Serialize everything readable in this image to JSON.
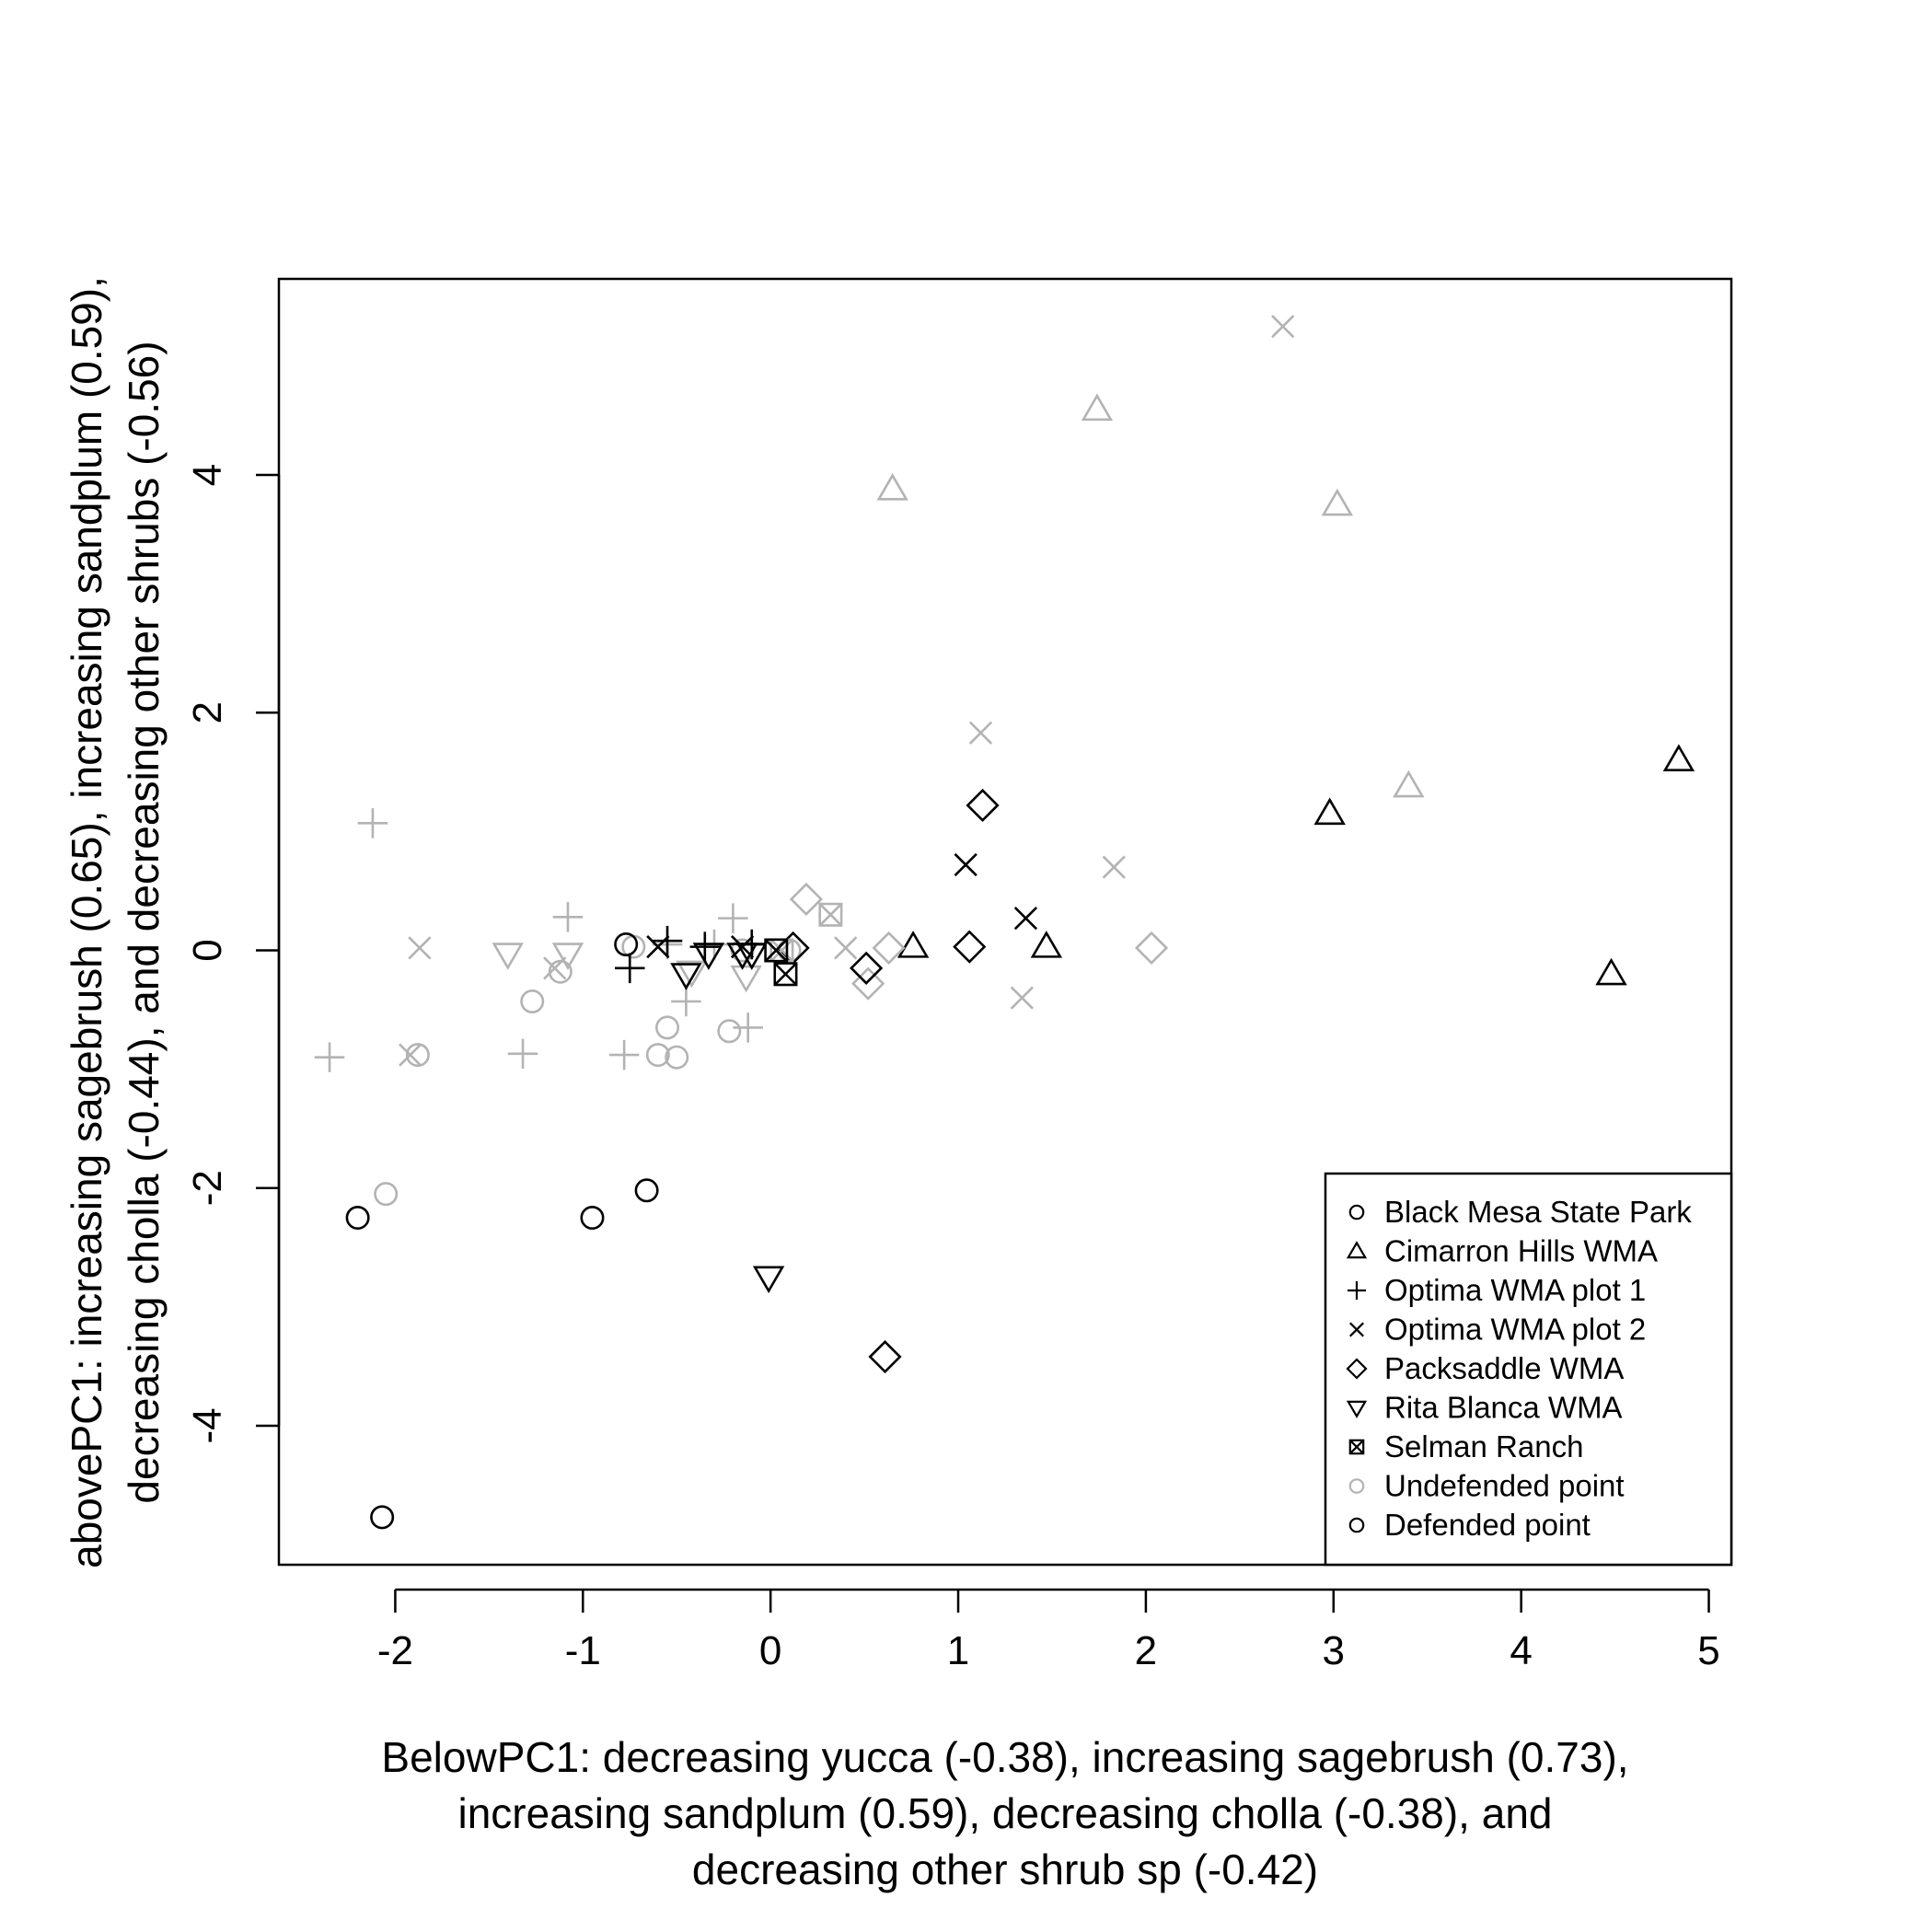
{
  "chart_data": {
    "type": "scatter",
    "title": "",
    "xlabel_lines": [
      "BelowPC1: decreasing yucca (-0.38), increasing sagebrush (0.73),",
      "increasing sandplum (0.59), decreasing cholla (-0.38), and",
      "decreasing other shrub sp (-0.42)"
    ],
    "ylabel_lines": [
      "abovePC1: increasing sagebrush (0.65), increasing sandplum (0.59),",
      "decreasing cholla (-0.44), and decreasing other shrubs (-0.56)"
    ],
    "xlim": [
      -2.62,
      5.12
    ],
    "ylim": [
      -5.17,
      5.65
    ],
    "x_ticks": [
      -2,
      -1,
      0,
      1,
      2,
      3,
      4,
      5
    ],
    "y_ticks": [
      -4,
      -2,
      0,
      2,
      4
    ],
    "x_tick_labels": [
      "-2",
      "-1",
      "0",
      "1",
      "2",
      "3",
      "4",
      "5"
    ],
    "y_tick_labels": [
      "-4",
      "-2",
      "0",
      "2",
      "4"
    ],
    "grid": false,
    "legend_position": "bottom-right",
    "colors": {
      "defended": "#000000",
      "undefended": "#b3b3b3"
    },
    "legend": [
      {
        "label": "Black Mesa State Park",
        "symbol": "circle",
        "color": "#000000"
      },
      {
        "label": "Cimarron Hills WMA",
        "symbol": "triangle",
        "color": "#000000"
      },
      {
        "label": "Optima WMA plot 1",
        "symbol": "plus",
        "color": "#000000"
      },
      {
        "label": "Optima WMA plot 2",
        "symbol": "cross",
        "color": "#000000"
      },
      {
        "label": "Packsaddle WMA",
        "symbol": "diamond",
        "color": "#000000"
      },
      {
        "label": "Rita Blanca WMA",
        "symbol": "triangle-down",
        "color": "#000000"
      },
      {
        "label": "Selman Ranch",
        "symbol": "boxcross",
        "color": "#000000"
      },
      {
        "label": "Undefended point",
        "symbol": "circle",
        "color": "#b3b3b3"
      },
      {
        "label": "Defended point",
        "symbol": "circle",
        "color": "#000000"
      }
    ],
    "series": [
      {
        "site": "Black Mesa State Park",
        "symbol": "circle",
        "status": "undefended",
        "x": [
          -2.05,
          -1.88,
          -1.27,
          -1.12,
          -0.6,
          -0.55,
          -0.5,
          -0.22,
          -0.73,
          -0.15,
          0.1
        ],
        "y": [
          -2.05,
          -0.88,
          -0.43,
          -0.18,
          -0.88,
          -0.65,
          -0.9,
          -0.68,
          0.03,
          0.0,
          0.0
        ]
      },
      {
        "site": "Black Mesa State Park",
        "symbol": "circle",
        "status": "defended",
        "x": [
          -2.2,
          -2.07,
          -0.95,
          -0.66,
          -0.77
        ],
        "y": [
          -2.25,
          -4.77,
          -2.25,
          -2.02,
          0.05
        ]
      },
      {
        "site": "Cimarron Hills WMA",
        "symbol": "triangle",
        "status": "undefended",
        "x": [
          0.65,
          1.74,
          3.02,
          3.4
        ],
        "y": [
          3.88,
          4.55,
          3.75,
          1.38
        ]
      },
      {
        "site": "Cimarron Hills WMA",
        "symbol": "triangle",
        "status": "defended",
        "x": [
          0.76,
          1.47,
          2.98,
          4.48,
          4.84
        ],
        "y": [
          0.03,
          0.03,
          1.15,
          -0.2,
          1.6
        ]
      },
      {
        "site": "Optima WMA plot 1",
        "symbol": "plus",
        "status": "undefended",
        "x": [
          -2.35,
          -2.12,
          -1.32,
          -1.08,
          -0.78,
          -0.45,
          -0.2,
          -0.12,
          -0.55,
          -0.3
        ],
        "y": [
          -0.9,
          1.07,
          -0.87,
          0.28,
          -0.88,
          -0.43,
          0.27,
          -0.65,
          0.05,
          0.05
        ]
      },
      {
        "site": "Optima WMA plot 1",
        "symbol": "plus",
        "status": "defended",
        "x": [
          -0.75,
          -0.55,
          -0.35,
          -0.1
        ],
        "y": [
          -0.15,
          0.08,
          0.03,
          0.05
        ]
      },
      {
        "site": "Optima WMA plot 2",
        "symbol": "cross",
        "status": "undefended",
        "x": [
          -1.87,
          -1.92,
          -1.15,
          0.4,
          1.12,
          1.34,
          1.83,
          2.73
        ],
        "y": [
          0.02,
          -0.88,
          -0.15,
          0.02,
          1.83,
          -0.4,
          0.7,
          5.25
        ]
      },
      {
        "site": "Optima WMA plot 2",
        "symbol": "cross",
        "status": "defended",
        "x": [
          -0.6,
          -0.15,
          1.04,
          1.36
        ],
        "y": [
          0.03,
          0.03,
          0.72,
          0.27
        ]
      },
      {
        "site": "Packsaddle WMA",
        "symbol": "diamond",
        "status": "undefended",
        "x": [
          0.19,
          0.52,
          0.63,
          2.03
        ],
        "y": [
          0.43,
          -0.28,
          0.02,
          0.02
        ]
      },
      {
        "site": "Packsaddle WMA",
        "symbol": "diamond",
        "status": "defended",
        "x": [
          0.12,
          0.51,
          1.06,
          1.13,
          0.61
        ],
        "y": [
          0.02,
          -0.15,
          0.03,
          1.22,
          -3.42
        ]
      },
      {
        "site": "Rita Blanca WMA",
        "symbol": "triangle-down",
        "status": "undefended",
        "x": [
          -1.4,
          -1.08,
          -0.42,
          -0.13
        ],
        "y": [
          -0.03,
          -0.03,
          -0.18,
          -0.22
        ]
      },
      {
        "site": "Rita Blanca WMA",
        "symbol": "triangle-down",
        "status": "defended",
        "x": [
          -0.45,
          -0.33,
          -0.15,
          -0.1,
          -0.01
        ],
        "y": [
          -0.2,
          -0.03,
          -0.03,
          -0.03,
          -2.75
        ]
      },
      {
        "site": "Selman Ranch",
        "symbol": "boxcross",
        "status": "undefended",
        "x": [
          0.32,
          0.06
        ],
        "y": [
          0.3,
          0.0
        ]
      },
      {
        "site": "Selman Ranch",
        "symbol": "boxcross",
        "status": "defended",
        "x": [
          0.08,
          0.03
        ],
        "y": [
          -0.2,
          0.0
        ]
      }
    ]
  }
}
